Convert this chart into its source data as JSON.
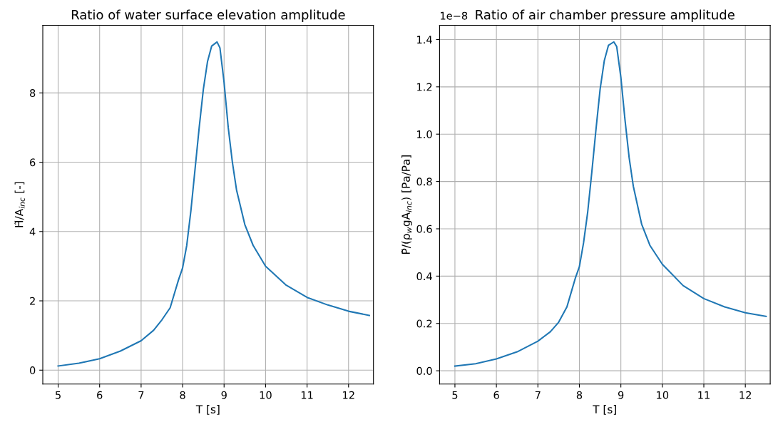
{
  "chart_data": [
    {
      "type": "line",
      "title": "Ratio of water surface elevation amplitude",
      "xlabel": "T [s]",
      "ylabel": "H̃/A$_{inc}$ [-]",
      "grid": true,
      "x": [
        5,
        5.5,
        6,
        6.5,
        7,
        7.3,
        7.5,
        7.7,
        7.8,
        7.9,
        8.0,
        8.1,
        8.2,
        8.3,
        8.4,
        8.5,
        8.6,
        8.7,
        8.83,
        8.9,
        9.0,
        9.1,
        9.2,
        9.3,
        9.5,
        9.7,
        10,
        10.5,
        11,
        11.5,
        12,
        12.5
      ],
      "series": [
        {
          "color": "#1f77b4",
          "values": [
            0.12,
            0.2,
            0.33,
            0.55,
            0.85,
            1.15,
            1.45,
            1.8,
            2.2,
            2.6,
            2.95,
            3.6,
            4.6,
            5.8,
            7.0,
            8.1,
            8.9,
            9.35,
            9.47,
            9.3,
            8.3,
            7.0,
            6.0,
            5.2,
            4.2,
            3.6,
            3.0,
            2.45,
            2.1,
            1.88,
            1.7,
            1.58
          ]
        }
      ],
      "xlim": [
        4.63,
        12.6
      ],
      "xticks": [
        5,
        6,
        7,
        8,
        9,
        10,
        11,
        12
      ],
      "ylim": [
        -0.4,
        9.95
      ],
      "yticks": [
        0,
        2,
        4,
        6,
        8
      ]
    },
    {
      "type": "line",
      "title": "Ratio of air chamber pressure amplitude",
      "xlabel": "T [s]",
      "ylabel": "P̃/(ρ$_{w}$gA$_{inc}$) [Pa/Pa]",
      "grid": true,
      "annotations": [
        "1e−8"
      ],
      "x": [
        5,
        5.5,
        6,
        6.5,
        7,
        7.3,
        7.5,
        7.7,
        7.8,
        7.9,
        8.0,
        8.1,
        8.2,
        8.3,
        8.4,
        8.5,
        8.6,
        8.7,
        8.83,
        8.9,
        9.0,
        9.1,
        9.2,
        9.3,
        9.5,
        9.7,
        10,
        10.5,
        11,
        11.5,
        12,
        12.5
      ],
      "series": [
        {
          "color": "#1f77b4",
          "values": [
            0.02,
            0.03,
            0.05,
            0.08,
            0.125,
            0.165,
            0.205,
            0.27,
            0.33,
            0.39,
            0.44,
            0.54,
            0.67,
            0.84,
            1.02,
            1.19,
            1.31,
            1.375,
            1.39,
            1.37,
            1.24,
            1.06,
            0.9,
            0.78,
            0.62,
            0.53,
            0.45,
            0.36,
            0.305,
            0.27,
            0.245,
            0.23
          ]
        }
      ],
      "xlim": [
        4.63,
        12.6
      ],
      "xticks": [
        5,
        6,
        7,
        8,
        9,
        10,
        11,
        12
      ],
      "ylim": [
        -0.056,
        1.46
      ],
      "yticks": [
        {
          "value": 0,
          "label": "0.0"
        },
        0.2,
        0.4,
        0.6,
        0.8,
        {
          "value": 1,
          "label": "1.0"
        },
        1.2,
        1.4
      ]
    }
  ]
}
